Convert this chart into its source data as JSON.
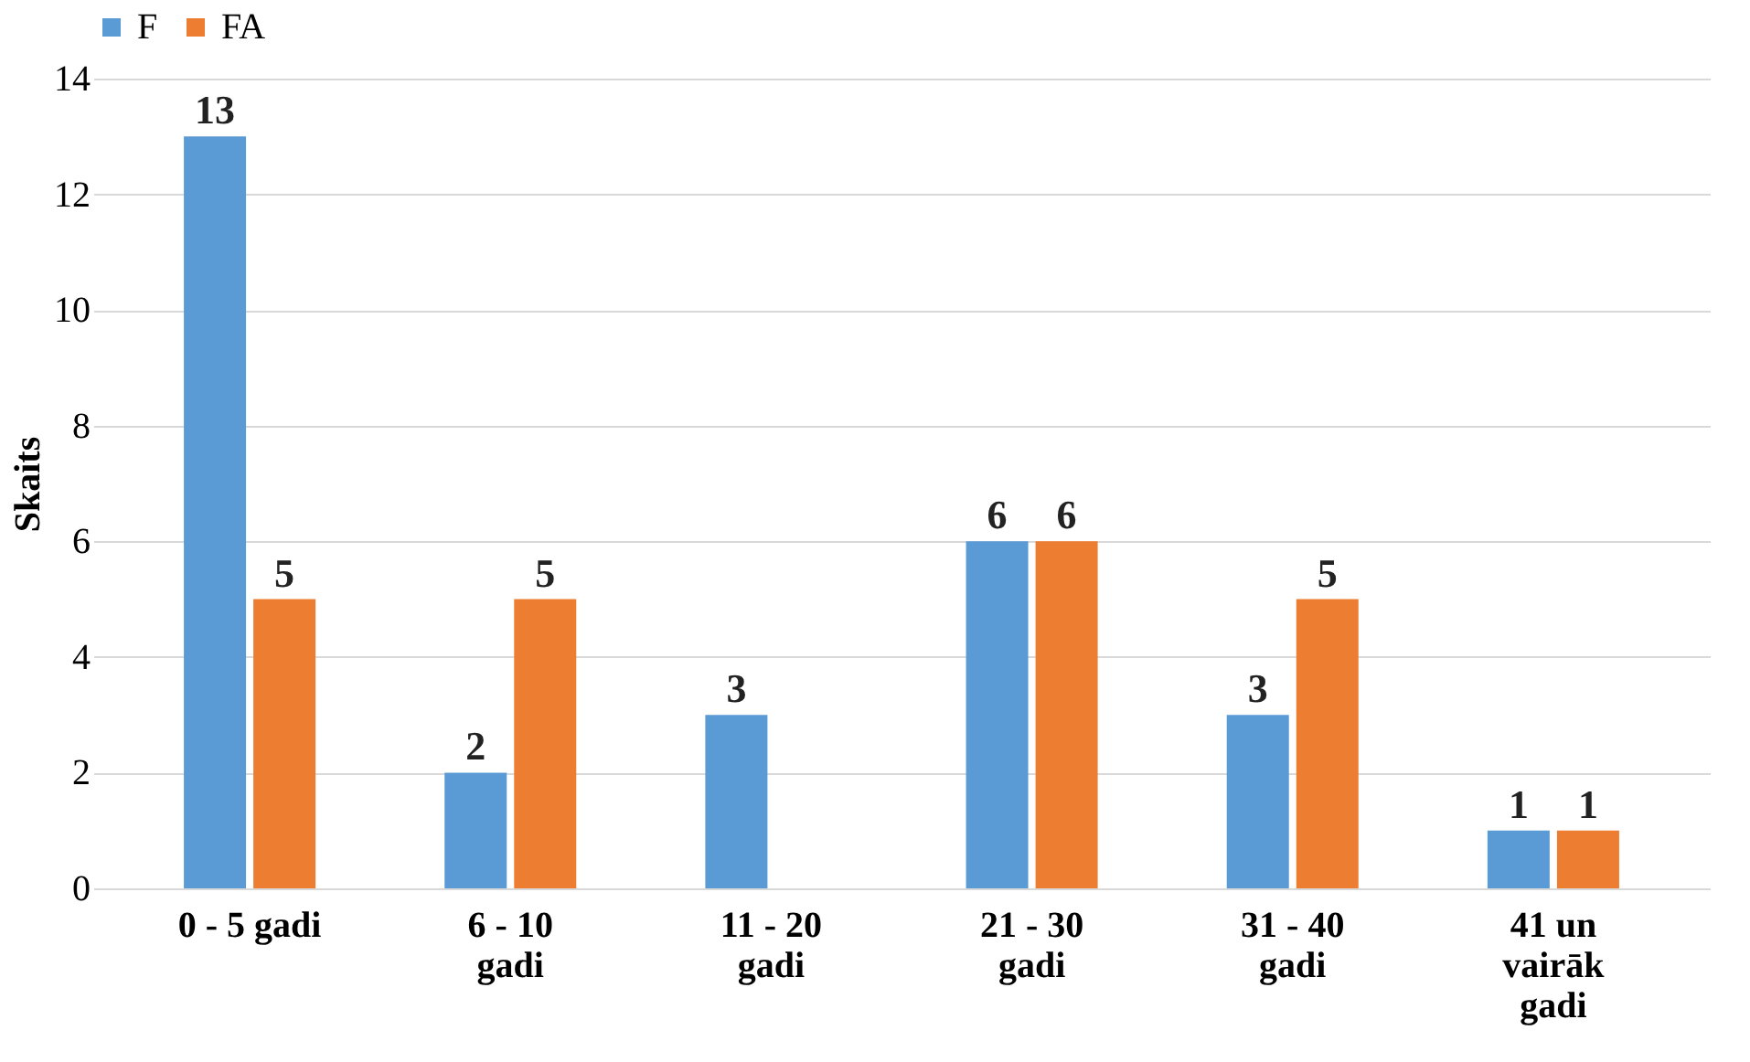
{
  "chart_data": {
    "type": "bar",
    "ylabel": "Skaits",
    "categories": [
      "0 - 5 gadi",
      "6 - 10 gadi",
      "11 - 20 gadi",
      "21 - 30 gadi",
      "31 - 40 gadi",
      "41 un vairāk gadi"
    ],
    "series": [
      {
        "name": "F",
        "color": "#5b9bd5",
        "values": [
          13,
          2,
          3,
          6,
          3,
          1
        ],
        "value_labels": [
          "13",
          "2",
          "3",
          "6",
          "3",
          "1"
        ]
      },
      {
        "name": "FA",
        "color": "#ed7d31",
        "values": [
          5,
          5,
          0,
          6,
          5,
          1
        ],
        "value_labels": [
          "5",
          "5",
          null,
          "6",
          "5",
          "1"
        ]
      }
    ],
    "ylim": [
      0,
      14
    ],
    "yticks": [
      0,
      2,
      4,
      6,
      8,
      10,
      12,
      14
    ],
    "grid": "y",
    "legend": "top"
  }
}
